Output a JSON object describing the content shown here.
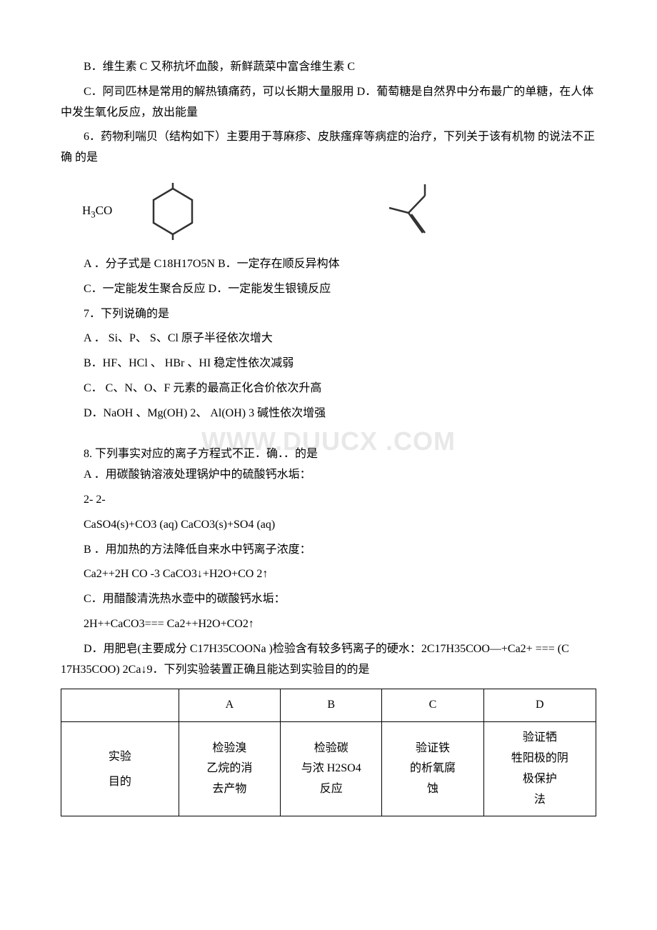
{
  "q5": {
    "optB": "B．维生素 C 又称抗坏血酸，新鲜蔬菜中富含维生素 C",
    "optCD": "C．阿司匹林是常用的解热镇痛药，可以长期大量服用 D．葡萄糖是自然界中分布最广的单糖，在人体中发生氧化反应，放出能量"
  },
  "q6": {
    "stem": "6．药物利喘贝（结构如下）主要用于荨麻疹、皮肤瘙痒等病症的治疗，下列关于该有机物 的说法不正确 的是",
    "formula_label_html": "H<span class=\"sub\">3</span>CO",
    "optsAB": "A ．分子式是 C18H17O5N B．一定存在顺反异构体",
    "optsCD": "C．一定能发生聚合反应 D．一定能发生银镜反应"
  },
  "q7": {
    "stem": "7．下列说确的是",
    "optA": "A ． Si、P、 S、Cl 原子半径依次增大",
    "optB": "B．HF、HCl 、 HBr 、HI 稳定性依次减弱",
    "optC": "C． C、N、O、F 元素的最高正化合价依次升高",
    "optD": "D．NaOH 、Mg(OH) 2、 Al(OH) 3 碱性依次增强"
  },
  "watermark": "WWW.DUUCX .COM",
  "q8": {
    "stem": "8. 下列事实对应的离子方程式不正．确．．的是",
    "optA_label": "A ．用碳酸钠溶液处理锅炉中的硫酸钙水垢：",
    "optA_note": "2- 2-",
    "optA_eq": "CaSO4(s)+CO3 (aq) CaCO3(s)+SO4 (aq)",
    "optB_label": "B ．用加热的方法降低自来水中钙离子浓度：",
    "optB_eq": "Ca2++2H CO -3 CaCO3↓+H2O+CO 2↑",
    "optC_label": "C．用醋酸清洗热水壶中的碳酸钙水垢：",
    "optC_eq": "2H++CaCO3=== Ca2++H2O+CO2↑",
    "optD": "D．用肥皂(主要成分 C17H35COONa )检验含有较多钙离子的硬水：2C17H35COO—+Ca2+ === (C 17H35COO) 2Ca↓9．下列实验装置正确且能达到实验目的的是"
  },
  "table": {
    "row1": {
      "c1": "",
      "c2": "A",
      "c3": "B",
      "c4": "C",
      "c5": "D"
    },
    "row2": {
      "c1_l1": "实验",
      "c1_l2": "目的",
      "c2_l1": "检验溴",
      "c2_l2": "乙烷的消",
      "c2_l3": "去产物",
      "c3_l1": "检验碳",
      "c3_l2": "与浓 H2SO4",
      "c3_l3": "反应",
      "c4_l1": "验证铁",
      "c4_l2": "的析氧腐",
      "c4_l3": "蚀",
      "c5_l1": "验证牺",
      "c5_l2": "牲阳极的阴",
      "c5_l3": "极保护",
      "c5_l4": "法"
    }
  }
}
